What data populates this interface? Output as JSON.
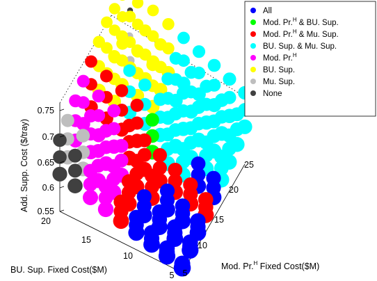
{
  "chart_data": {
    "type": "scatter",
    "subtype": "3d-scatter",
    "xlabel": {
      "main": "Mod. Pr.",
      "sup": "H",
      "rest": " Fixed Cost($M)"
    },
    "ylabel": "BU. Sup. Fixed Cost($M)",
    "zlabel": "Add. Supp. Cost ($/tray)",
    "xlim": [
      5,
      25
    ],
    "ylim": [
      5,
      20
    ],
    "zlim": [
      0.55,
      0.75
    ],
    "xticks": [
      "5",
      "10",
      "15",
      "20",
      "25"
    ],
    "yticks": [
      "5",
      "10",
      "15",
      "20"
    ],
    "zticks": [
      "0.55",
      "0.6",
      "0.65",
      "0.7",
      "0.75"
    ],
    "grid": false,
    "legend_position": "top-right",
    "series": [
      {
        "name": "All",
        "name_sup": "",
        "name_rest": "",
        "color": "#0000ff"
      },
      {
        "name": "Mod. Pr.",
        "name_sup": "H",
        "name_rest": " & BU. Sup.",
        "color": "#00ff00"
      },
      {
        "name": "Mod. Pr.",
        "name_sup": "H",
        "name_rest": " & Mu. Sup.",
        "color": "#ff0000"
      },
      {
        "name": "BU. Sup. & Mu. Sup.",
        "name_sup": "",
        "name_rest": "",
        "color": "#00ffff"
      },
      {
        "name": "Mod. Pr.",
        "name_sup": "H",
        "name_rest": "",
        "color": "#ff00ff"
      },
      {
        "name": "BU. Sup.",
        "name_sup": "",
        "name_rest": "",
        "color": "#ffff00"
      },
      {
        "name": "Mu. Sup.",
        "name_sup": "",
        "name_rest": "",
        "color": "#bebebe"
      },
      {
        "name": "None",
        "name_sup": "",
        "name_rest": "",
        "color": "#404040"
      }
    ]
  }
}
